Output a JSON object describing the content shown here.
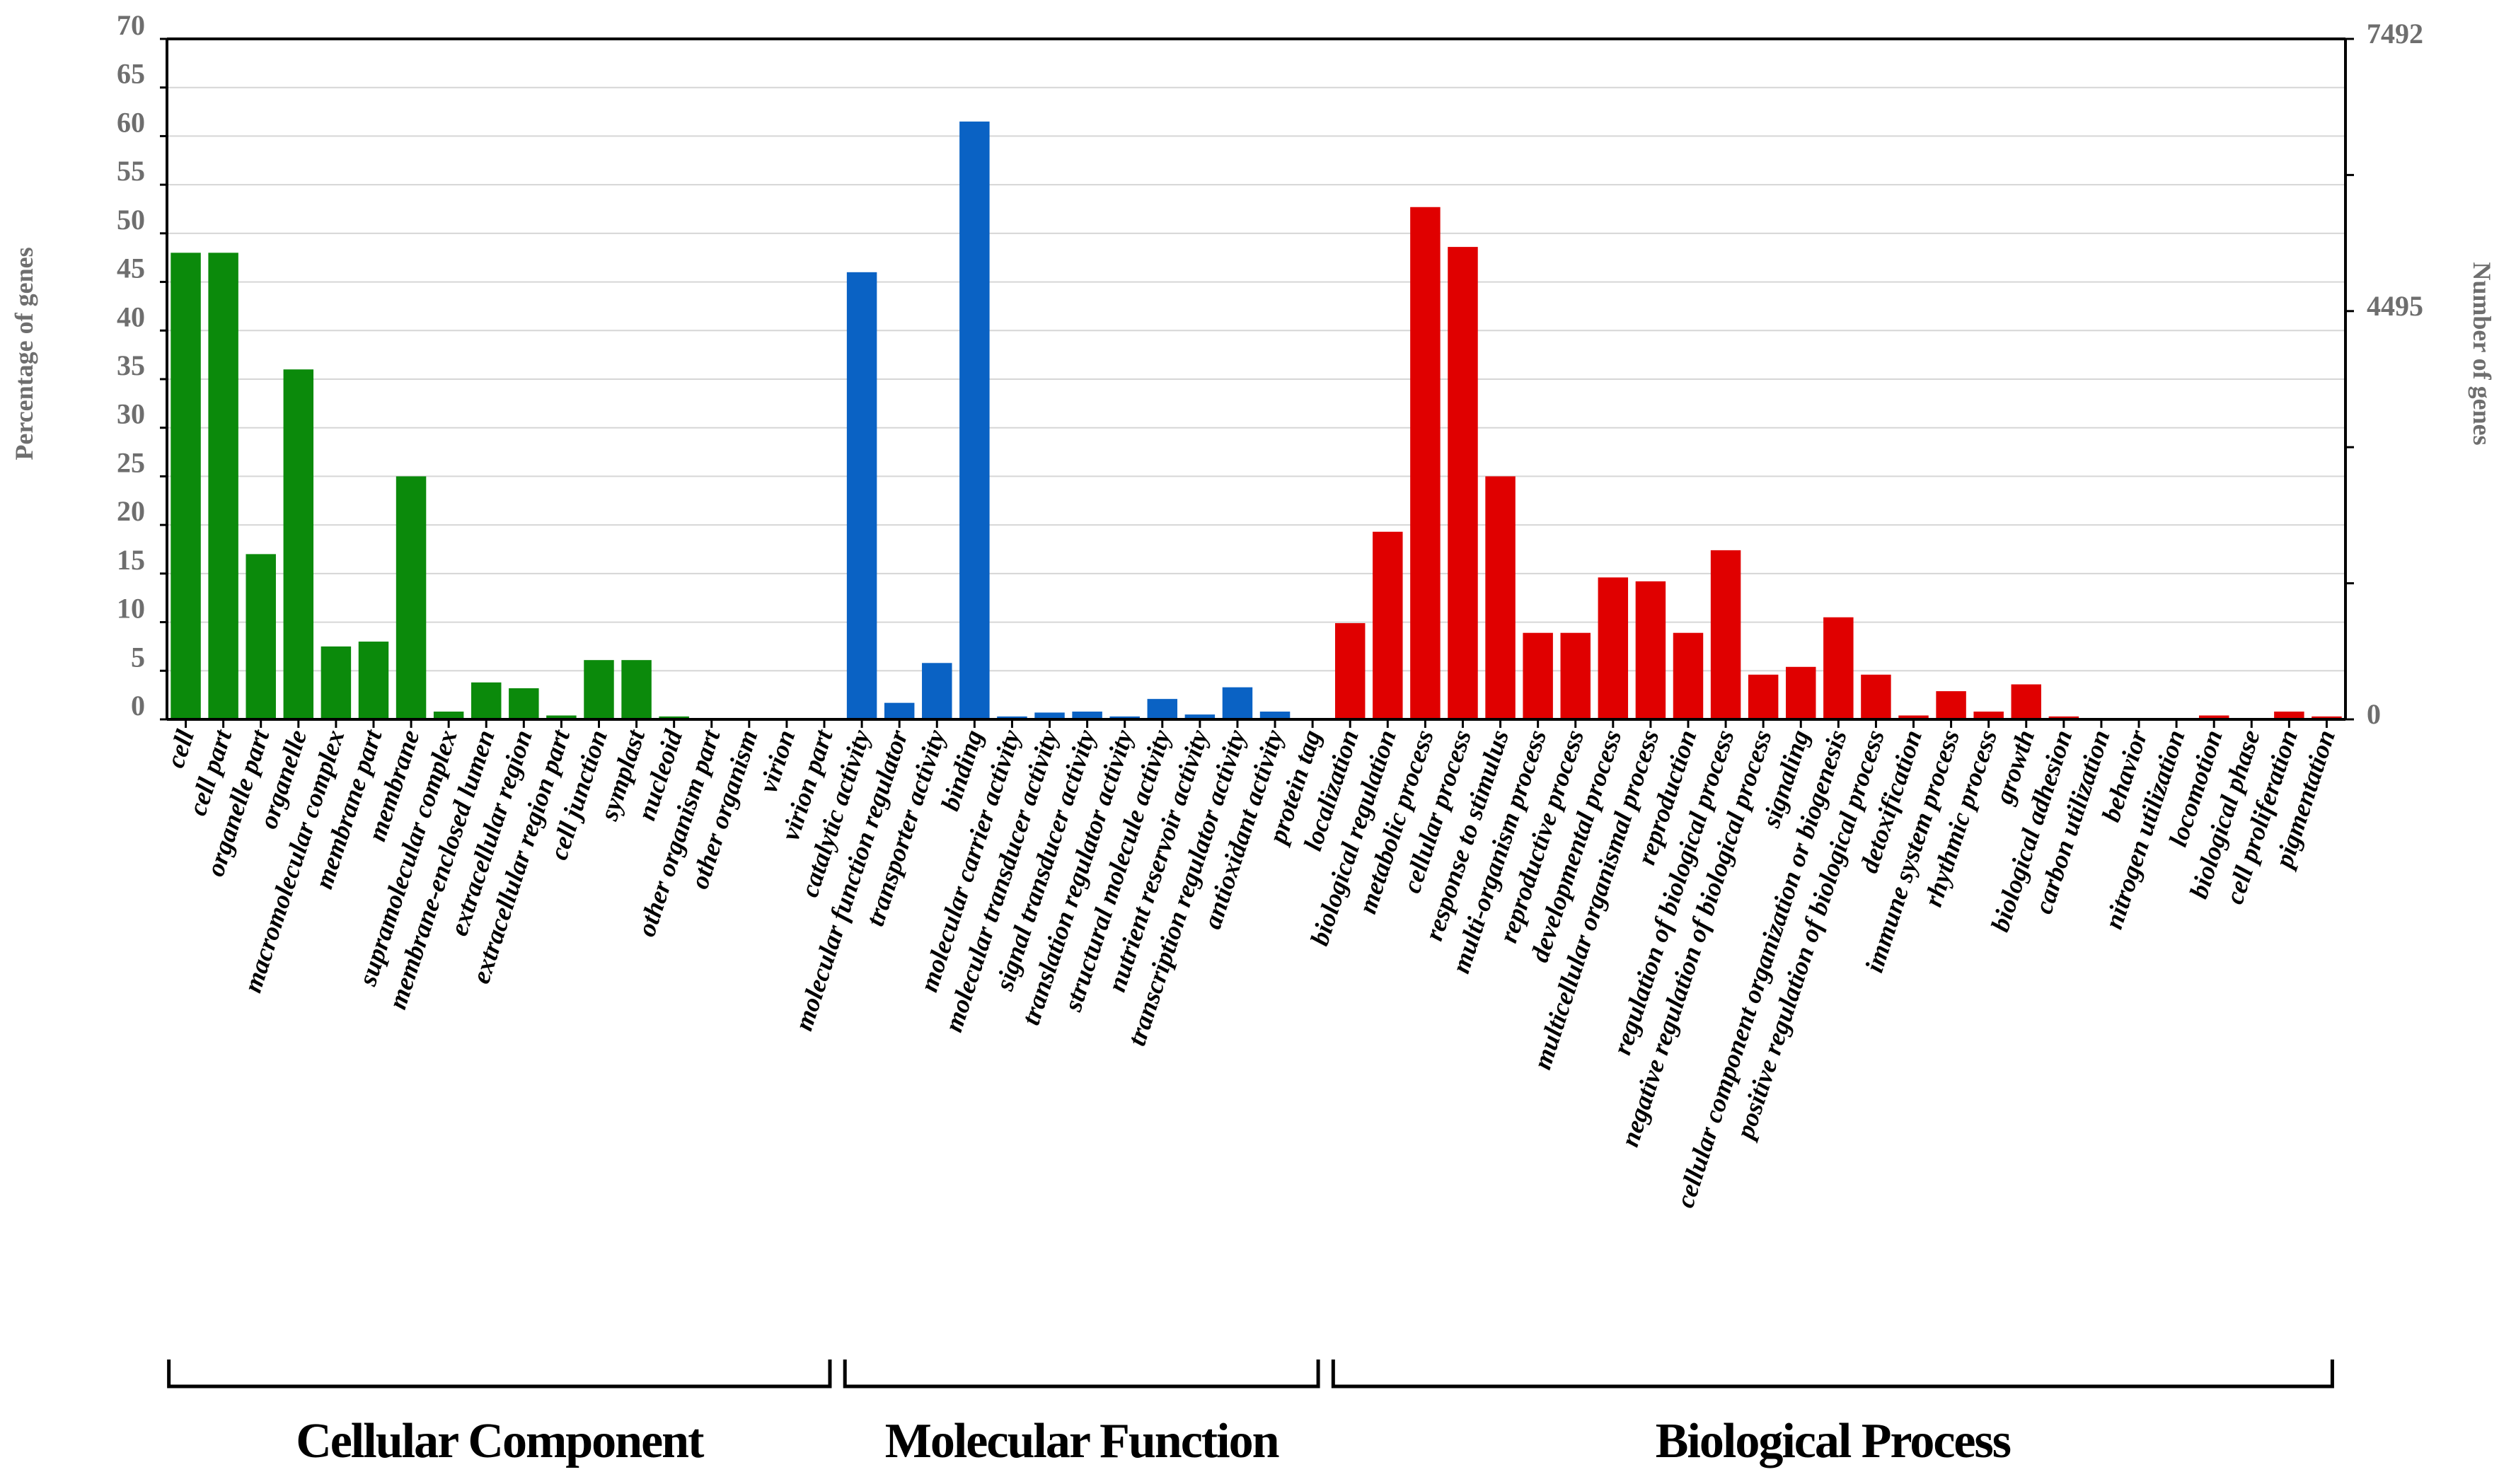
{
  "chart_data": {
    "type": "bar",
    "ylabel": "Percentage of genes",
    "ylabel_right": "Number of genes",
    "ylim": [
      0,
      70
    ],
    "y_ticks": [
      0,
      5,
      10,
      15,
      20,
      25,
      30,
      35,
      40,
      45,
      50,
      55,
      60,
      65,
      70
    ],
    "right_ticks": [
      "7492",
      "4495",
      "0"
    ],
    "grid": true,
    "colors": {
      "Cellular Component": "#0b8a0b",
      "Molecular Function": "#0a62c4",
      "Biological Process": "#e00000"
    },
    "groups": [
      {
        "name": "Cellular Component",
        "categories": [
          "cell",
          "cell part",
          "organelle part",
          "organelle",
          "macromolecular complex",
          "membrane part",
          "membrane",
          "supramolecular complex",
          "membrane-enclosed lumen",
          "extracellular region",
          "extracellular region part",
          "cell junction",
          "symplast",
          "nucleoid",
          "other organism part",
          "other organism",
          "virion",
          "virion part"
        ],
        "values": [
          48.0,
          48.0,
          17.0,
          36.0,
          7.5,
          8.0,
          25.0,
          0.8,
          3.8,
          3.2,
          0.4,
          6.1,
          6.1,
          0.3,
          0.1,
          0.1,
          0.1,
          0.1
        ]
      },
      {
        "name": "Molecular Function",
        "categories": [
          "catalytic activity",
          "molecular function regulator",
          "transporter activity",
          "binding",
          "molecular carrier activity",
          "molecular transducer activity",
          "signal transducer activity",
          "translation regulator activity",
          "structural molecule activity",
          "nutrient reservoir activity",
          "transcription regulator activity",
          "antioxidant activity",
          "protein tag"
        ],
        "values": [
          46.0,
          1.7,
          5.8,
          61.5,
          0.3,
          0.7,
          0.8,
          0.3,
          2.1,
          0.5,
          3.3,
          0.8,
          0.1
        ]
      },
      {
        "name": "Biological Process",
        "categories": [
          "localization",
          "biological regulation",
          "metabolic process",
          "cellular process",
          "response to stimulus",
          "multi-organism process",
          "reproductive process",
          "developmental process",
          "multicellular organismal process",
          "reproduction",
          "regulation of biological process",
          "negative regulation of biological process",
          "signaling",
          "cellular component organization or biogenesis",
          "positive regulation of biological process",
          "detoxification",
          "immune system process",
          "rhythmic process",
          "growth",
          "biological adhesion",
          "carbon utilization",
          "behavior",
          "nitrogen utilization",
          "locomotion",
          "biological phase",
          "cell proliferation",
          "pigmentation"
        ],
        "values": [
          9.9,
          19.3,
          52.7,
          48.6,
          25.0,
          8.9,
          8.9,
          14.6,
          14.2,
          8.9,
          17.4,
          4.6,
          5.4,
          10.5,
          4.6,
          0.4,
          2.9,
          0.8,
          3.6,
          0.3,
          0.1,
          0.1,
          0.1,
          0.4,
          0.1,
          0.8,
          0.3
        ]
      }
    ]
  }
}
